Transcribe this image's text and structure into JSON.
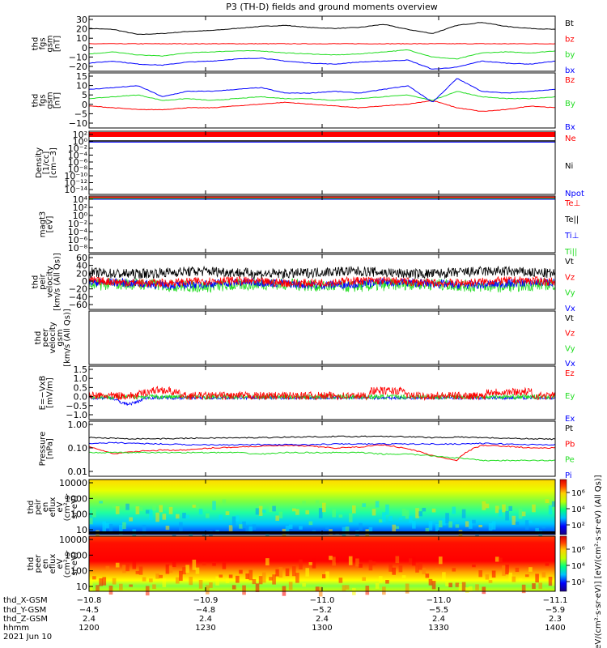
{
  "title": "P3 (TH-D) fields and ground moments overview",
  "colors": {
    "black": "#000000",
    "red": "#ff0000",
    "green": "#22dd22",
    "blue": "#0000ff"
  },
  "chart_data": [
    {
      "type": "line",
      "ylabel_lines": [
        "thd",
        "fgs",
        "gsm",
        "[nT]"
      ],
      "yticks": [
        "30",
        "20",
        "10",
        "0",
        "−10",
        "−20"
      ],
      "ylim": [
        -22,
        32
      ],
      "series": [
        {
          "name": "Bt",
          "color": "black",
          "values": [
            20,
            19,
            14,
            15,
            17,
            18,
            20,
            22,
            23,
            21,
            20,
            21,
            24,
            19,
            15,
            23,
            26,
            22,
            20,
            19
          ]
        },
        {
          "name": "bz",
          "color": "red",
          "values": [
            5,
            5,
            5,
            5,
            5,
            5,
            5,
            5,
            5,
            5,
            5,
            5,
            5,
            5,
            5,
            5,
            5,
            5,
            5,
            5
          ]
        },
        {
          "name": "by",
          "color": "green",
          "values": [
            -5,
            -3,
            -6,
            -7,
            -4,
            -3,
            -2,
            -2,
            -4,
            -5,
            -6,
            -5,
            -3,
            -1,
            -8,
            -10,
            -4,
            -3,
            -4,
            -2
          ]
        },
        {
          "name": "bx",
          "color": "blue",
          "values": [
            -14,
            -12,
            -15,
            -16,
            -13,
            -12,
            -10,
            -9,
            -12,
            -14,
            -15,
            -13,
            -12,
            -11,
            -20,
            -18,
            -12,
            -14,
            -15,
            -12
          ]
        }
      ]
    },
    {
      "type": "line",
      "ylabel_lines": [
        "thd",
        "fgs",
        "gsm",
        "[nT]"
      ],
      "yticks": [
        "15",
        "10",
        "5",
        "0",
        "−5",
        "−10"
      ],
      "ylim": [
        -14,
        16
      ],
      "series": [
        {
          "name": "Bz",
          "color": "red",
          "values": [
            -2,
            -3,
            -4,
            -4,
            -3,
            -3,
            -2,
            -1,
            0,
            -1,
            -2,
            -3,
            -2,
            -1,
            1,
            -3,
            -5,
            -4,
            -2,
            -3
          ]
        },
        {
          "name": "By",
          "color": "green",
          "values": [
            2,
            3,
            4,
            1,
            2,
            1,
            2,
            3,
            2,
            2,
            1,
            2,
            3,
            4,
            1,
            6,
            3,
            2,
            2,
            3
          ]
        },
        {
          "name": "Bx",
          "color": "blue",
          "values": [
            7,
            8,
            9,
            3,
            6,
            6,
            7,
            8,
            5,
            5,
            6,
            5,
            7,
            9,
            0,
            13,
            6,
            5,
            6,
            7
          ]
        }
      ]
    },
    {
      "type": "line",
      "ylabel_lines": [
        "Density",
        "[1/cc]",
        "[cm−3]"
      ],
      "yticks": [
        "10²",
        "10⁰",
        "10⁻²",
        "10⁻⁴",
        "10⁻⁶",
        "10⁻⁸",
        "10⁻¹⁰",
        "10⁻¹²",
        "10⁻¹⁴"
      ],
      "ylim": [
        -15,
        3
      ],
      "log": true,
      "series": [
        {
          "name": "Ne",
          "color": "red",
          "values": []
        },
        {
          "name": "Ni",
          "color": "black",
          "values": []
        },
        {
          "name": "Npot",
          "color": "blue",
          "values": []
        }
      ]
    },
    {
      "type": "line",
      "ylabel_lines": [
        "magt3",
        "[eV]"
      ],
      "yticks": [
        "10⁴",
        "10²",
        "10⁰",
        "10⁻²",
        "10⁻⁴",
        "10⁻⁶",
        "10⁻⁸"
      ],
      "ylim": [
        -9,
        5
      ],
      "log": true,
      "series": [
        {
          "name": "Te⊥",
          "color": "red",
          "values": []
        },
        {
          "name": "Te||",
          "color": "black",
          "values": []
        },
        {
          "name": "Ti⊥",
          "color": "blue",
          "values": []
        },
        {
          "name": "Ti||",
          "color": "green",
          "values": []
        }
      ]
    },
    {
      "type": "line",
      "ylabel_lines": [
        "thd",
        "peir",
        "velocity",
        "[km/s (All Qs)]"
      ],
      "yticks": [
        "60",
        "40",
        "20",
        "0",
        "−20",
        "−40",
        "−60"
      ],
      "ylim": [
        -65,
        65
      ],
      "series": [
        {
          "name": "Vt",
          "color": "black",
          "values": []
        },
        {
          "name": "Vz",
          "color": "red",
          "values": []
        },
        {
          "name": "Vy",
          "color": "green",
          "values": []
        },
        {
          "name": "Vx",
          "color": "blue",
          "values": []
        }
      ]
    },
    {
      "type": "line",
      "ylabel_lines": [
        "thd",
        "peer",
        "velocity",
        "gsm",
        "[km/s (All Qs)]"
      ],
      "yticks": [],
      "ylim": [
        0,
        1
      ],
      "series": [
        {
          "name": "Vt",
          "color": "black",
          "values": []
        },
        {
          "name": "Vz",
          "color": "red",
          "values": []
        },
        {
          "name": "Vy",
          "color": "green",
          "values": []
        },
        {
          "name": "Vx",
          "color": "blue",
          "values": []
        }
      ]
    },
    {
      "type": "line",
      "ylabel_lines": [
        "E=−VxB",
        "[mV/m]"
      ],
      "yticks": [
        "1.5",
        "1.0",
        "0.5",
        "0.0",
        "−0.5",
        "−1.0"
      ],
      "ylim": [
        -1.1,
        1.6
      ],
      "series": [
        {
          "name": "Ez",
          "color": "red",
          "values": []
        },
        {
          "name": "Ey",
          "color": "green",
          "values": []
        },
        {
          "name": "Ex",
          "color": "blue",
          "values": []
        }
      ]
    },
    {
      "type": "line",
      "ylabel_lines": [
        "Pressure",
        "[nPa]"
      ],
      "yticks": [
        "1.00",
        "0.10",
        "0.01"
      ],
      "ylim": [
        -2,
        0.1
      ],
      "log": true,
      "series": [
        {
          "name": "Pt",
          "color": "black",
          "values": [
            0.3,
            0.28,
            0.27,
            0.27,
            0.28,
            0.29,
            0.29,
            0.3,
            0.31,
            0.32,
            0.33,
            0.33,
            0.34,
            0.32,
            0.3,
            0.31,
            0.3,
            0.28,
            0.27,
            0.26
          ]
        },
        {
          "name": "Pb",
          "color": "red",
          "values": [
            0.13,
            0.07,
            0.09,
            0.1,
            0.1,
            0.12,
            0.13,
            0.14,
            0.15,
            0.14,
            0.12,
            0.13,
            0.16,
            0.11,
            0.06,
            0.04,
            0.15,
            0.14,
            0.12,
            0.12
          ]
        },
        {
          "name": "Pe",
          "color": "green",
          "values": [
            0.08,
            0.08,
            0.08,
            0.08,
            0.08,
            0.08,
            0.08,
            0.07,
            0.08,
            0.08,
            0.08,
            0.08,
            0.07,
            0.07,
            0.06,
            0.05,
            0.04,
            0.04,
            0.04,
            0.04
          ]
        },
        {
          "name": "Pi",
          "color": "blue",
          "values": [
            0.18,
            0.19,
            0.18,
            0.17,
            0.16,
            0.16,
            0.16,
            0.16,
            0.16,
            0.16,
            0.17,
            0.17,
            0.17,
            0.17,
            0.17,
            0.17,
            0.18,
            0.17,
            0.16,
            0.16
          ]
        }
      ]
    },
    {
      "type": "heatmap",
      "ylabel_lines": [
        "thd",
        "peir",
        "en",
        "eflux",
        "eV",
        "(cm²·s·",
        "sr·eV)"
      ],
      "yticks": [
        "10000",
        "1000",
        "100",
        "10"
      ],
      "colorbar_ticks": [
        "10⁶",
        "10⁴",
        "10²"
      ]
    },
    {
      "type": "heatmap",
      "ylabel_lines": [
        "thd",
        "peer",
        "en",
        "eflux",
        "eV",
        "(cm²·s·",
        "sr·eV)"
      ],
      "yticks": [
        "10000",
        "1000",
        "100",
        "10"
      ],
      "colorbar_ticks": [
        "10⁶",
        "10⁴",
        "10²"
      ]
    }
  ],
  "colorbar_label": "[eV/(cm²·s·sr·eV)] [eV/(cm²·s·sr·eV) (All Qs)]",
  "xaxis": {
    "row_labels": [
      "thd_X-GSM",
      "thd_Y-GSM",
      "thd_Z-GSM",
      "hhmm",
      "2021 Jun 10"
    ],
    "columns": [
      {
        "x": "−10.8",
        "y": "−4.5",
        "z": "2.4",
        "time": "1200"
      },
      {
        "x": "−10.9",
        "y": "−4.8",
        "z": "2.4",
        "time": "1230"
      },
      {
        "x": "−11.0",
        "y": "−5.2",
        "z": "2.4",
        "time": "1300"
      },
      {
        "x": "−11.0",
        "y": "−5.5",
        "z": "2.4",
        "time": "1330"
      },
      {
        "x": "−11.1",
        "y": "−5.9",
        "z": "2.3",
        "time": "1400"
      }
    ]
  }
}
